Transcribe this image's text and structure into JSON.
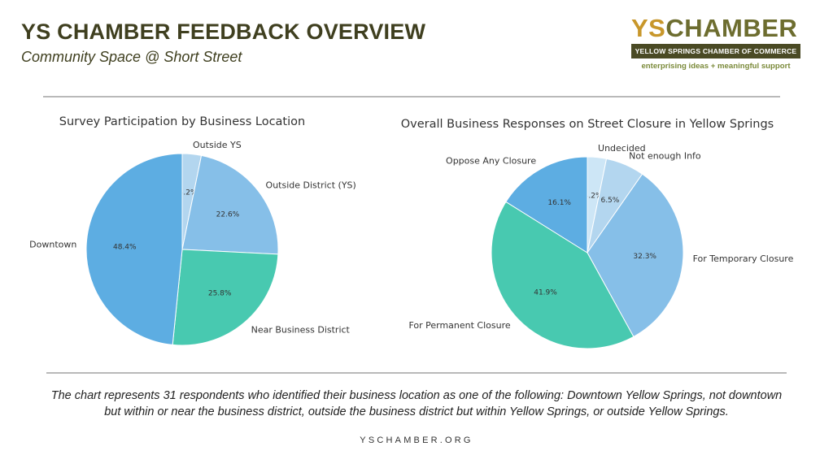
{
  "header": {
    "title": "YS CHAMBER FEEDBACK OVERVIEW",
    "subtitle": "Community Space @ Short Street"
  },
  "logo": {
    "ys": "YS",
    "chamber": "CHAMBER",
    "org_name": "YELLOW SPRINGS CHAMBER OF COMMERCE",
    "tagline": "enterprising ideas + meaningful support"
  },
  "footer": {
    "note": "The chart represents 31 respondents who identified their business location as one of the following: Downtown Yellow Springs, not downtown but within or near the business district, outside the business district but within Yellow Springs, or outside Yellow Springs.",
    "url": "YSCHAMBER.ORG"
  },
  "chart_data": [
    {
      "type": "pie",
      "title": "Survey Participation by Business Location",
      "slices": [
        {
          "label": "Outside YS",
          "value": 3.2,
          "pct_label": "3.2%",
          "color": "#b3d6ef"
        },
        {
          "label": "Outside District (YS)",
          "value": 22.6,
          "pct_label": "22.6%",
          "color": "#86bfe8"
        },
        {
          "label": "Near Business District",
          "value": 25.8,
          "pct_label": "25.8%",
          "color": "#48c9b0"
        },
        {
          "label": "Downtown",
          "value": 48.4,
          "pct_label": "48.4%",
          "color": "#5dade2"
        }
      ],
      "start_angle_deg": 90,
      "direction": "clockwise"
    },
    {
      "type": "pie",
      "title": "Overall Business Responses on Street Closure in Yellow Springs",
      "slices": [
        {
          "label": "Undecided",
          "value": 3.2,
          "pct_label": "3.2%",
          "color": "#cde6f6"
        },
        {
          "label": "Not enough Info",
          "value": 6.5,
          "pct_label": "6.5%",
          "color": "#b3d6ef"
        },
        {
          "label": "For Temporary Closure",
          "value": 32.3,
          "pct_label": "32.3%",
          "color": "#86bfe8"
        },
        {
          "label": "For Permanent Closure",
          "value": 41.9,
          "pct_label": "41.9%",
          "color": "#48c9b0"
        },
        {
          "label": "Oppose Any Closure",
          "value": 16.1,
          "pct_label": "16.1%",
          "color": "#5dade2"
        }
      ],
      "start_angle_deg": 90,
      "direction": "clockwise"
    }
  ]
}
